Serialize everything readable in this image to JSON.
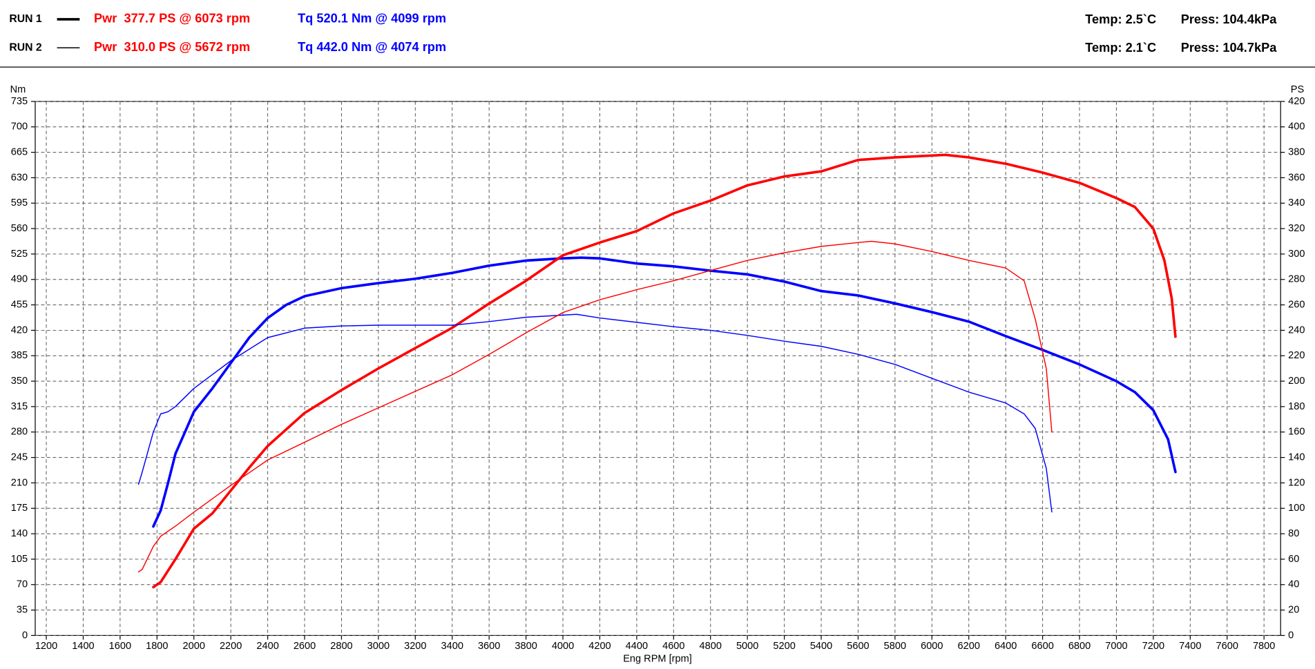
{
  "chart_data": {
    "type": "line",
    "xlabel": "Eng RPM [rpm]",
    "ylabel": "Nm",
    "y2label": "PS",
    "xlim": [
      1140,
      7890
    ],
    "xticks": [
      1200,
      1400,
      1600,
      1800,
      2000,
      2200,
      2400,
      2600,
      2800,
      3000,
      3200,
      3400,
      3600,
      3800,
      4000,
      4200,
      4400,
      4600,
      4800,
      5000,
      5200,
      5400,
      5600,
      5800,
      6000,
      6200,
      6400,
      6600,
      6800,
      7000,
      7200,
      7400,
      7600,
      7800
    ],
    "ylim": [
      0,
      735
    ],
    "yticks": [
      0,
      35,
      70,
      105,
      140,
      175,
      210,
      245,
      280,
      315,
      350,
      385,
      420,
      455,
      490,
      525,
      560,
      595,
      630,
      665,
      700,
      735
    ],
    "y2lim": [
      0,
      420
    ],
    "y2ticks": [
      0,
      20,
      40,
      60,
      80,
      100,
      120,
      140,
      160,
      180,
      200,
      220,
      240,
      260,
      280,
      300,
      320,
      340,
      360,
      380,
      400,
      420
    ],
    "grid": true,
    "power_color": "#ff0000",
    "torque_color": "#0000ff",
    "runs": [
      {
        "name": "RUN 1",
        "line_width": 3,
        "power_label": "Pwr  377.7 PS @ 6073 rpm",
        "torque_label": "Tq 520.1 Nm @ 4099 rpm",
        "temp": "Temp: 2.5`C",
        "press": "Press: 104.4kPa",
        "power": {
          "x": [
            1780,
            1820,
            1900,
            2000,
            2100,
            2200,
            2300,
            2400,
            2600,
            2800,
            3000,
            3200,
            3400,
            3600,
            3800,
            4000,
            4200,
            4400,
            4600,
            4800,
            5000,
            5200,
            5400,
            5600,
            5800,
            6073,
            6200,
            6400,
            6600,
            6800,
            7000,
            7100,
            7200,
            7260,
            7300,
            7320
          ],
          "values": [
            38,
            42,
            60,
            84,
            96,
            114,
            132,
            149,
            175,
            193,
            210,
            226,
            242,
            261,
            279,
            299,
            309,
            318,
            332,
            342,
            354,
            361,
            365,
            374,
            376,
            378,
            376,
            371,
            364,
            356,
            344,
            337,
            320,
            295,
            265,
            235
          ]
        },
        "torque": {
          "x": [
            1780,
            1820,
            1860,
            1900,
            2000,
            2100,
            2200,
            2300,
            2400,
            2500,
            2600,
            2800,
            3000,
            3200,
            3400,
            3600,
            3800,
            4000,
            4099,
            4200,
            4400,
            4600,
            4800,
            5000,
            5200,
            5400,
            5600,
            5800,
            6000,
            6200,
            6400,
            6600,
            6800,
            7000,
            7100,
            7200,
            7280,
            7320
          ],
          "values": [
            150,
            172,
            210,
            250,
            308,
            340,
            375,
            410,
            437,
            455,
            467,
            478,
            485,
            491,
            499,
            509,
            516,
            519,
            520,
            519,
            512,
            508,
            502,
            497,
            487,
            474,
            468,
            457,
            445,
            432,
            412,
            393,
            373,
            350,
            335,
            310,
            270,
            225
          ]
        }
      },
      {
        "name": "RUN 2",
        "line_width": 1.2,
        "power_label": "Pwr  310.0 PS @ 5672 rpm",
        "torque_label": "Tq 442.0 Nm @ 4074 rpm",
        "temp": "Temp: 2.1`C",
        "press": "Press: 104.7kPa",
        "power": {
          "x": [
            1700,
            1720,
            1780,
            1820,
            1900,
            2000,
            2200,
            2400,
            2600,
            2800,
            3000,
            3200,
            3400,
            3600,
            3800,
            4000,
            4200,
            4400,
            4600,
            4800,
            5000,
            5200,
            5400,
            5600,
            5672,
            5800,
            6000,
            6200,
            6400,
            6500,
            6560,
            6620,
            6650
          ],
          "values": [
            50,
            52,
            70,
            78,
            86,
            97,
            118,
            138,
            152,
            166,
            179,
            192,
            205,
            221,
            238,
            254,
            264,
            272,
            279,
            287,
            295,
            301,
            306,
            309,
            310,
            308,
            302,
            295,
            289,
            279,
            249,
            210,
            160
          ]
        },
        "torque": {
          "x": [
            1700,
            1720,
            1780,
            1820,
            1860,
            1900,
            2000,
            2200,
            2400,
            2600,
            2800,
            3000,
            3200,
            3400,
            3600,
            3800,
            4074,
            4200,
            4400,
            4600,
            4800,
            5000,
            5200,
            5400,
            5600,
            5800,
            6000,
            6200,
            6400,
            6500,
            6560,
            6620,
            6650
          ],
          "values": [
            208,
            225,
            280,
            305,
            308,
            315,
            340,
            378,
            410,
            423,
            426,
            427,
            427,
            427,
            432,
            438,
            442,
            437,
            431,
            425,
            420,
            413,
            405,
            398,
            387,
            373,
            354,
            335,
            320,
            305,
            285,
            230,
            170
          ]
        }
      }
    ]
  }
}
